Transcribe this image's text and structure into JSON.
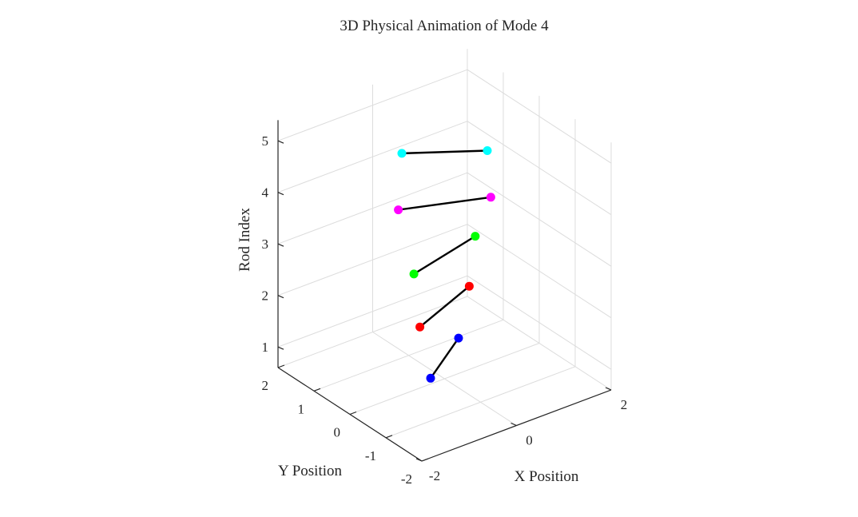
{
  "chart_data": {
    "type": "scatter3d",
    "title": "3D Physical Animation of Mode 4",
    "xlabel": "X Position",
    "ylabel": "Y Position",
    "zlabel": "Rod Index",
    "xlim": [
      -2,
      2
    ],
    "ylim": [
      -2,
      2
    ],
    "zlim": [
      0.6,
      5.4
    ],
    "xticks": [
      "-2",
      "0",
      "2"
    ],
    "yticks": [
      "-2",
      "-1",
      "0",
      "1",
      "2"
    ],
    "zticks": [
      "1",
      "2",
      "3",
      "4",
      "5"
    ],
    "grid": true,
    "rods": [
      {
        "index": 1,
        "color": "#0000ff",
        "end1": [
          -0.6,
          -0.4,
          1
        ],
        "end2": [
          0.6,
          0.4,
          1
        ]
      },
      {
        "index": 2,
        "color": "#ff0000",
        "end1": [
          -0.75,
          -0.3,
          2
        ],
        "end2": [
          0.75,
          0.3,
          2
        ]
      },
      {
        "index": 3,
        "color": "#00ff00",
        "end1": [
          -0.8,
          -0.2,
          3
        ],
        "end2": [
          0.8,
          0.2,
          3
        ]
      },
      {
        "index": 4,
        "color": "#ff00ff",
        "end1": [
          -0.75,
          0.3,
          4
        ],
        "end2": [
          0.75,
          -0.3,
          4
        ]
      },
      {
        "index": 5,
        "color": "#00ffff",
        "end1": [
          -0.6,
          0.4,
          5
        ],
        "end2": [
          0.6,
          -0.4,
          5
        ]
      }
    ]
  }
}
